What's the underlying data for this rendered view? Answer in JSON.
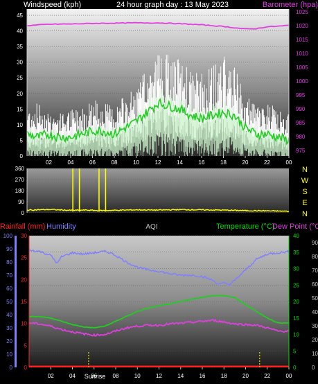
{
  "header": {
    "left": "Windspeed (kph)",
    "center": "24 hour graph day : 13 May 2023",
    "right": "Barometer (hpa)"
  },
  "colors": {
    "wind": "#ffffff",
    "wind_avg": "#22cc22",
    "wind_light": "#ccf5cc",
    "baro": "#e040e0",
    "dir": "#ffff00",
    "rain": "#ff2020",
    "humidity": "#8080ff",
    "temp": "#22cc22",
    "dew": "#dd40dd",
    "axis_green": "#00dd00",
    "axis_blue": "#8080ff",
    "axis_red": "#ff2020"
  },
  "compass": [
    "N",
    "W",
    "S",
    "E",
    "N"
  ],
  "bottom_labels": {
    "rainfall": "Rainfall (mm)",
    "humidity": "Humidity",
    "aqi": "AQI",
    "temperature": "Temperature (°C)",
    "dewpoint": "Dew Point (°C)",
    "sunrise": "Sunrise"
  },
  "chart_data": [
    {
      "type": "line",
      "id": "wind-baro",
      "xticks": [
        "02",
        "04",
        "06",
        "08",
        "10",
        "12",
        "14",
        "16",
        "18",
        "20",
        "22",
        "00"
      ],
      "y_left": {
        "label": "Windspeed (kph)",
        "ticks": [
          0,
          5,
          10,
          15,
          20,
          25,
          30,
          35,
          40,
          45
        ],
        "range": [
          0,
          47
        ]
      },
      "y_right": {
        "label": "Barometer (hpa)",
        "ticks": [
          975,
          980,
          985,
          990,
          995,
          1000,
          1005,
          1010,
          1015,
          1020,
          1025
        ],
        "range": [
          973,
          1026
        ]
      },
      "series": [
        {
          "name": "Windspeed (kph)",
          "role": "gust",
          "x": [
            0,
            1,
            2,
            3,
            4,
            5,
            6,
            7,
            8,
            9,
            10,
            11,
            12,
            13,
            14,
            15,
            16,
            17,
            18,
            19,
            20,
            21,
            22,
            23,
            24
          ],
          "values": [
            14,
            15,
            13,
            12,
            13,
            14,
            16,
            15,
            14,
            17,
            19,
            25,
            30,
            28,
            27,
            24,
            23,
            25,
            28,
            25,
            17,
            14,
            15,
            13,
            12
          ]
        },
        {
          "name": "average",
          "role": "avg",
          "x": [
            0,
            1,
            2,
            3,
            4,
            5,
            6,
            7,
            8,
            9,
            10,
            11,
            12,
            13,
            14,
            15,
            16,
            17,
            18,
            19,
            20,
            21,
            22,
            23,
            24
          ],
          "values": [
            7,
            6,
            7,
            6,
            6,
            7,
            8,
            8,
            7,
            9,
            11,
            14,
            17,
            16,
            15,
            13,
            12,
            13,
            14,
            13,
            9,
            7,
            7,
            6,
            5
          ]
        },
        {
          "name": "Barometer (hpa)",
          "role": "baro",
          "x": [
            0,
            2,
            4,
            6,
            8,
            10,
            12,
            14,
            16,
            18,
            20,
            21,
            22,
            23,
            24
          ],
          "values": [
            1020,
            1020.5,
            1020.6,
            1020.8,
            1020.9,
            1021,
            1021,
            1020.7,
            1020.3,
            1019.7,
            1018.8,
            1018.9,
            1019.6,
            1019.8,
            1020.1
          ]
        }
      ]
    },
    {
      "type": "line",
      "id": "wind-direction",
      "xticks": [
        "02",
        "04",
        "06",
        "08",
        "10",
        "12",
        "14",
        "16",
        "18",
        "20",
        "22",
        "00"
      ],
      "y_left": {
        "ticks": [
          0,
          90,
          180,
          270,
          360
        ],
        "range": [
          0,
          360
        ]
      },
      "series": [
        {
          "name": "Direction",
          "x": [
            0,
            2,
            4,
            5.5,
            6.5,
            8,
            10,
            12,
            14,
            16,
            18,
            20,
            22,
            23,
            24
          ],
          "values": [
            22,
            27,
            20,
            22,
            18,
            20,
            24,
            22,
            26,
            24,
            22,
            18,
            16,
            14,
            12
          ]
        },
        {
          "name": "Direction spikes",
          "x": [
            4.2,
            4.8,
            6.6,
            7.2
          ],
          "values": [
            360,
            360,
            360,
            360
          ]
        }
      ]
    },
    {
      "type": "line",
      "id": "temp-hum-rain",
      "xticks": [
        "02",
        "04",
        "06",
        "08",
        "10",
        "12",
        "14",
        "16",
        "18",
        "20",
        "22",
        "00"
      ],
      "y_humidity": {
        "label": "Humidity",
        "ticks": [
          0,
          10,
          20,
          30,
          40,
          50,
          60,
          70,
          80,
          90,
          100
        ],
        "range": [
          0,
          100
        ]
      },
      "y_rain": {
        "label": "Rainfall (mm)",
        "ticks": [
          0,
          5,
          10,
          15,
          20,
          25,
          30
        ],
        "range": [
          0,
          30
        ]
      },
      "y_temp": {
        "label": "Temperature (°C)",
        "ticks": [
          0,
          5,
          10,
          15,
          20,
          25,
          30,
          35,
          40
        ],
        "range": [
          0,
          40
        ]
      },
      "y_aqi": {
        "label": "AQI",
        "ticks": [
          0,
          10,
          20,
          30,
          40,
          50,
          60,
          70,
          80,
          90
        ],
        "range": [
          0,
          95
        ]
      },
      "sunrise_x": 5.5,
      "sunset_x": 21.3,
      "series": [
        {
          "name": "Humidity",
          "axis": "humidity",
          "x": [
            0,
            1,
            2,
            2.6,
            3,
            4,
            5,
            6,
            7,
            7.5,
            8,
            9,
            10,
            11,
            12,
            13,
            14,
            15,
            16,
            17,
            17.5,
            18,
            18.5,
            19,
            20,
            21,
            22,
            23,
            24
          ],
          "values": [
            89,
            88,
            85,
            79,
            84,
            87,
            86,
            87,
            88,
            87,
            85,
            80,
            76,
            74,
            73,
            71,
            70,
            70,
            69,
            66,
            63,
            64,
            63,
            66,
            74,
            82,
            86,
            87,
            88
          ]
        },
        {
          "name": "Temperature (°C)",
          "axis": "temp",
          "x": [
            0,
            1,
            2,
            3,
            4,
            5,
            6,
            7,
            8,
            9,
            10,
            11,
            12,
            13,
            14,
            15,
            16,
            17,
            18,
            19,
            20,
            21,
            22,
            23,
            24
          ],
          "values": [
            15.5,
            15.4,
            15,
            14,
            13,
            12.3,
            12,
            12.5,
            14,
            15.5,
            17,
            18,
            18.7,
            19.3,
            20,
            20.7,
            21.3,
            21.8,
            21.8,
            21.2,
            19,
            17,
            15,
            13.5,
            13.5
          ]
        },
        {
          "name": "Dew Point (°C)",
          "axis": "temp",
          "x": [
            0,
            1,
            2,
            3,
            4,
            5,
            6,
            7,
            8,
            9,
            10,
            11,
            12,
            13,
            14,
            15,
            16,
            17,
            18,
            19,
            20,
            21,
            22,
            23,
            24
          ],
          "values": [
            13.5,
            13.2,
            12.5,
            11.5,
            10.8,
            10.2,
            9.8,
            10,
            11,
            12,
            12.5,
            12.8,
            12.8,
            13.2,
            13.4,
            13.7,
            14,
            14.3,
            13.8,
            13.2,
            13,
            12.8,
            12,
            11,
            11
          ]
        },
        {
          "name": "Rainfall (mm)",
          "axis": "rain",
          "x": [
            0,
            24
          ],
          "values": [
            0.2,
            0.2
          ]
        }
      ]
    }
  ]
}
